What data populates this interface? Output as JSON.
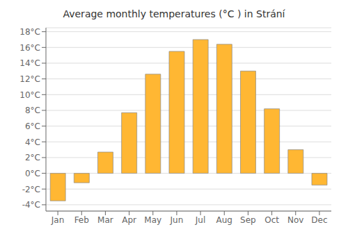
{
  "chart_data": {
    "type": "bar",
    "title": "Average monthly temperatures (°C ) in Strání",
    "categories": [
      "Jan",
      "Feb",
      "Mar",
      "Apr",
      "May",
      "Jun",
      "Jul",
      "Aug",
      "Sep",
      "Oct",
      "Nov",
      "Dec"
    ],
    "values": [
      -3.5,
      -1.2,
      2.7,
      7.7,
      12.6,
      15.5,
      17.0,
      16.4,
      13.0,
      8.2,
      3.0,
      -1.5
    ],
    "color": "#FFB733",
    "ylim": [
      -4.8,
      18.5
    ],
    "yticks": [
      {
        "value": -4,
        "label": "-4°C"
      },
      {
        "value": -2,
        "label": "-2°C"
      },
      {
        "value": 0,
        "label": "0°C"
      },
      {
        "value": 2,
        "label": "2°C"
      },
      {
        "value": 4,
        "label": "4°C"
      },
      {
        "value": 6,
        "label": "6°C"
      },
      {
        "value": 8,
        "label": "8°C"
      },
      {
        "value": 10,
        "label": "10°C"
      },
      {
        "value": 12,
        "label": "12°C"
      },
      {
        "value": 14,
        "label": "14°C"
      },
      {
        "value": 16,
        "label": "16°C"
      },
      {
        "value": 18,
        "label": "18°C"
      }
    ],
    "grid": true
  }
}
